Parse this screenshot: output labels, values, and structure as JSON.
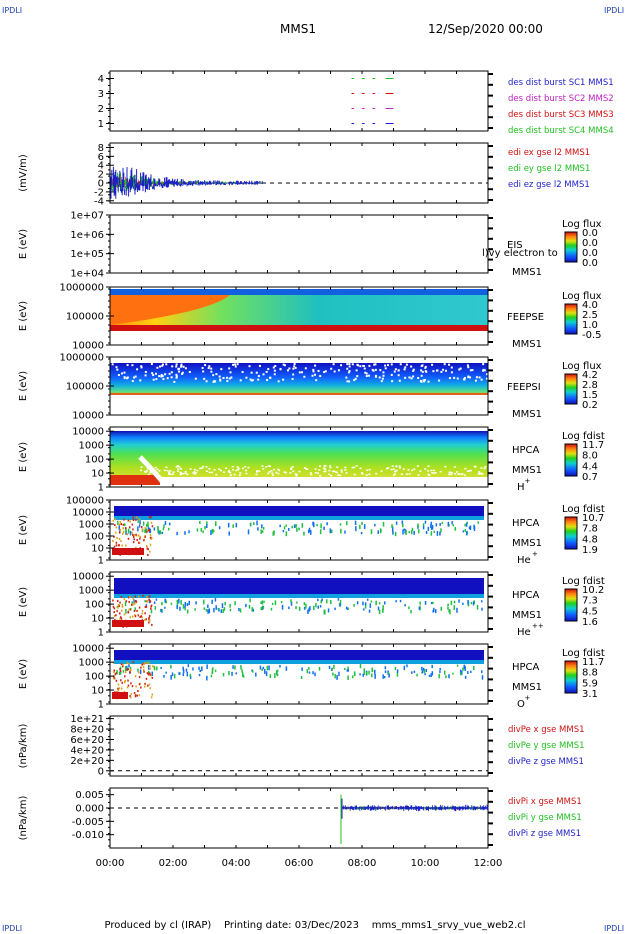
{
  "header": {
    "corner_label": "IPDLI",
    "spacecraft": "MMS1",
    "date": "12/Sep/2020 00:00"
  },
  "footer": {
    "produced_by": "Produced by cl (IRAP)",
    "printing_date": "Printing date: 03/Dec/2023",
    "script_name": "mms_mms1_srvy_vue_web2.cl"
  },
  "colors": {
    "blue": "#1f1fc8",
    "red": "#d01010",
    "green": "#20c020",
    "magenta": "#c020c0"
  },
  "chart_data": [
    {
      "type": "scatter",
      "panel": "burst-intervals",
      "ylim": [
        0.5,
        4.5
      ],
      "yticks": [
        "1",
        "2",
        "3",
        "4"
      ],
      "legend": [
        {
          "text": "des dist burst SC1 MMS1",
          "color": "blue"
        },
        {
          "text": "des dist burst SC2 MMS2",
          "color": "magenta"
        },
        {
          "text": "des dist burst SC3 MMS3",
          "color": "red"
        },
        {
          "text": "des dist burst SC4 MMS4",
          "color": "green"
        }
      ],
      "segments": [
        {
          "sc": 4,
          "t": [
            [
              "07:40",
              "07:45"
            ],
            [
              "08:00",
              "08:05"
            ],
            [
              "08:20",
              "08:25"
            ],
            [
              "08:45",
              "09:00"
            ]
          ]
        },
        {
          "sc": 3,
          "t": [
            [
              "07:40",
              "07:45"
            ],
            [
              "08:00",
              "08:05"
            ],
            [
              "08:20",
              "08:25"
            ],
            [
              "08:45",
              "09:00"
            ]
          ]
        },
        {
          "sc": 2,
          "t": [
            [
              "07:40",
              "07:45"
            ],
            [
              "08:00",
              "08:05"
            ],
            [
              "08:20",
              "08:25"
            ],
            [
              "08:45",
              "09:00"
            ]
          ]
        },
        {
          "sc": 1,
          "t": [
            [
              "07:40",
              "07:45"
            ],
            [
              "08:00",
              "08:05"
            ],
            [
              "08:20",
              "08:25"
            ],
            [
              "08:45",
              "09:00"
            ]
          ]
        }
      ]
    },
    {
      "type": "line",
      "panel": "edi-electric-field",
      "ylabel": "(mV/m)",
      "ylim": [
        -4.5,
        9
      ],
      "yticks": [
        "8",
        "6",
        "4",
        "2",
        "0",
        "-2",
        "-4"
      ],
      "legend": [
        {
          "text": "edi ex gse l2 MMS1",
          "color": "red"
        },
        {
          "text": "edi ey gse l2 MMS1",
          "color": "green"
        },
        {
          "text": "edi ez gse l2 MMS1",
          "color": "blue"
        }
      ],
      "data_end": "04:50",
      "envelope": {
        "t": [
          "00:00",
          "00:30",
          "01:00",
          "01:30",
          "02:00",
          "03:00",
          "04:00",
          "04:50"
        ],
        "amp": [
          7,
          6,
          4,
          2.5,
          1.5,
          1,
          0.8,
          0.7
        ]
      }
    },
    {
      "type": "heatmap",
      "panel": "eis-electron",
      "ylabel": "E (eV)",
      "yscale": "log",
      "ylim": [
        10000,
        10000000
      ],
      "yticks": [
        "1e+04",
        "1e+05",
        "1e+06",
        "1e+07"
      ],
      "instrument": [
        "EIS",
        "MMS1"
      ],
      "overlay_text": "l)vy electron to",
      "colorbar": {
        "title": "Log flux",
        "ticks": [
          "0.0",
          "0.0",
          "0.0",
          "0.0"
        ]
      }
    },
    {
      "type": "heatmap",
      "panel": "feeps-electron",
      "ylabel": "E (eV)",
      "yscale": "log",
      "ylim": [
        10000,
        1000000
      ],
      "yticks": [
        "1000000",
        "100000",
        "10000"
      ],
      "instrument": [
        "FEEPSE",
        "MMS1"
      ],
      "colorbar": {
        "title": "Log flux",
        "ticks": [
          "4.0",
          "2.5",
          "1.0",
          "-0.5"
        ]
      }
    },
    {
      "type": "heatmap",
      "panel": "feeps-ion",
      "ylabel": "E (eV)",
      "yscale": "log",
      "ylim": [
        10000,
        1000000
      ],
      "yticks": [
        "1000000",
        "100000",
        "10000"
      ],
      "instrument": [
        "FEEPSI",
        "MMS1"
      ],
      "colorbar": {
        "title": "Log flux",
        "ticks": [
          "4.2",
          "2.8",
          "1.5",
          "0.2"
        ]
      }
    },
    {
      "type": "heatmap",
      "panel": "hpca-h",
      "ylabel": "E (eV)",
      "yscale": "log",
      "ylim": [
        1,
        20000
      ],
      "yticks": [
        "10000",
        "1000",
        "100",
        "10",
        "1"
      ],
      "instrument": [
        "HPCA",
        "MMS1"
      ],
      "species": "H",
      "charge": "+",
      "colorbar": {
        "title": "Log fdist",
        "ticks": [
          "11.7",
          "8.0",
          "4.4",
          "0.7"
        ]
      }
    },
    {
      "type": "heatmap",
      "panel": "hpca-he",
      "ylabel": "E (eV)",
      "yscale": "log",
      "ylim": [
        1,
        100000
      ],
      "yticks": [
        "100000",
        "10000",
        "1000",
        "100",
        "10",
        "1"
      ],
      "instrument": [
        "HPCA",
        "MMS1"
      ],
      "species": "He",
      "charge": "+",
      "colorbar": {
        "title": "Log fdist",
        "ticks": [
          "10.7",
          "7.8",
          "4.8",
          "1.9"
        ]
      }
    },
    {
      "type": "heatmap",
      "panel": "hpca-he2",
      "ylabel": "E (eV)",
      "yscale": "log",
      "ylim": [
        1,
        20000
      ],
      "yticks": [
        "10000",
        "1000",
        "100",
        "10",
        "1"
      ],
      "instrument": [
        "HPCA",
        "MMS1"
      ],
      "species": "He",
      "charge": "++",
      "colorbar": {
        "title": "Log fdist",
        "ticks": [
          "10.2",
          "7.3",
          "4.5",
          "1.6"
        ]
      }
    },
    {
      "type": "heatmap",
      "panel": "hpca-o",
      "ylabel": "E (eV)",
      "yscale": "log",
      "ylim": [
        1,
        20000
      ],
      "yticks": [
        "10000",
        "1000",
        "100",
        "10",
        "1"
      ],
      "instrument": [
        "HPCA",
        "MMS1"
      ],
      "species": "O",
      "charge": "+",
      "colorbar": {
        "title": "Log fdist",
        "ticks": [
          "11.7",
          "8.8",
          "5.9",
          "3.1"
        ]
      }
    },
    {
      "type": "line",
      "panel": "div-pe",
      "ylabel": "(nPa/km)",
      "ylim": [
        -1e+20,
        1.05e+21
      ],
      "yticks": [
        "1e+21",
        "8e+20",
        "6e+20",
        "4e+20",
        "2e+20",
        "0"
      ],
      "legend": [
        {
          "text": "divPe x gse MMS1",
          "color": "red"
        },
        {
          "text": "divPe y gse MMS1",
          "color": "green"
        },
        {
          "text": "divPe z gse MMS1",
          "color": "blue"
        }
      ]
    },
    {
      "type": "line",
      "panel": "div-pi",
      "ylabel": "(nPa/km)",
      "ylim": [
        -0.015,
        0.0075
      ],
      "yticks": [
        "0.005",
        "0.000",
        "-0.005",
        "-0.010"
      ],
      "legend": [
        {
          "text": "divPi x gse MMS1",
          "color": "red"
        },
        {
          "text": "divPi y gse MMS1",
          "color": "green"
        },
        {
          "text": "divPi z gse MMS1",
          "color": "blue"
        }
      ],
      "data_start": "07:20",
      "spike": {
        "t": "07:20",
        "min": -0.0135,
        "max": 0.005
      }
    }
  ],
  "x_axis": {
    "start": "00:00",
    "end": "12:00",
    "ticks": [
      "00:00",
      "02:00",
      "04:00",
      "06:00",
      "08:00",
      "10:00",
      "12:00"
    ]
  }
}
